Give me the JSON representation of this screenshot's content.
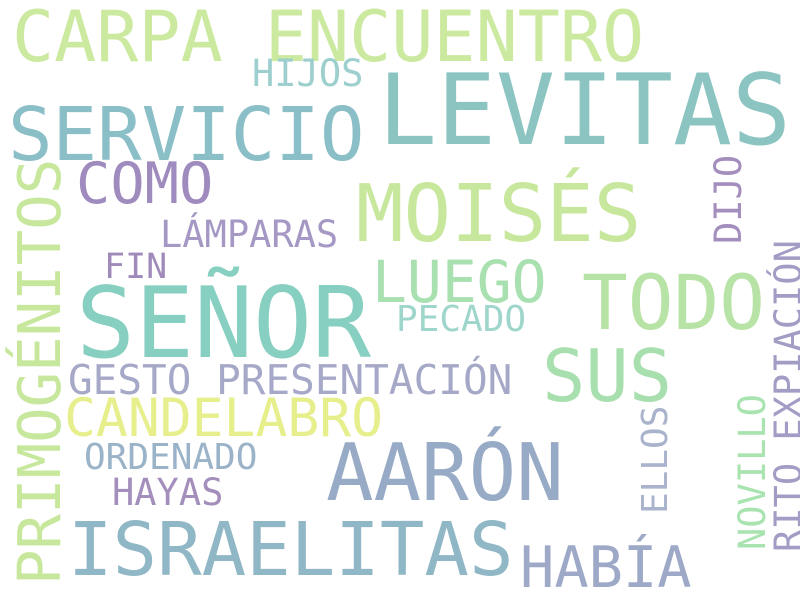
{
  "word_cloud": {
    "words": [
      {
        "text": "LEVITAS",
        "color": "#8cc4c1"
      },
      {
        "text": "SEÑOR",
        "color": "#87cfc0"
      },
      {
        "text": "CARPA ENCUENTRO",
        "color": "#cce9a0"
      },
      {
        "text": "SERVICIO",
        "color": "#8bbfc7"
      },
      {
        "text": "MOISÉS",
        "color": "#c7e89c"
      },
      {
        "text": "AARÓN",
        "color": "#98abc6"
      },
      {
        "text": "ISRAELITAS",
        "color": "#90b7c6"
      },
      {
        "text": "TODO",
        "color": "#b8e3a6"
      },
      {
        "text": "SUS",
        "color": "#a8dfae"
      },
      {
        "text": "CANDELABRO",
        "color": "#e6ef8c"
      },
      {
        "text": "HABÍA",
        "color": "#9ea9c8"
      },
      {
        "text": "PRIMOGÉNITOS",
        "color": "#c7e89c"
      },
      {
        "text": "COMO",
        "color": "#9f8bbe"
      },
      {
        "text": "LUEGO",
        "color": "#a8e0b0"
      },
      {
        "text": "GESTO PRESENTACIÓN",
        "color": "#a6a8c8"
      },
      {
        "text": "RITO EXPIACIÓN",
        "color": "#a29dc4"
      },
      {
        "text": "HIJOS",
        "color": "#9ccfcd"
      },
      {
        "text": "LÁMPARAS",
        "color": "#a598c4"
      },
      {
        "text": "DIJO",
        "color": "#a48ebd"
      },
      {
        "text": "FIN",
        "color": "#a08aba"
      },
      {
        "text": "PECADO",
        "color": "#9ed6cc"
      },
      {
        "text": "ORDENADO",
        "color": "#9ab3c8"
      },
      {
        "text": "HAYAS",
        "color": "#a48ebc"
      },
      {
        "text": "ELLOS",
        "color": "#aab3cc"
      },
      {
        "text": "NOVILLO",
        "color": "#a8e3b0"
      }
    ]
  }
}
